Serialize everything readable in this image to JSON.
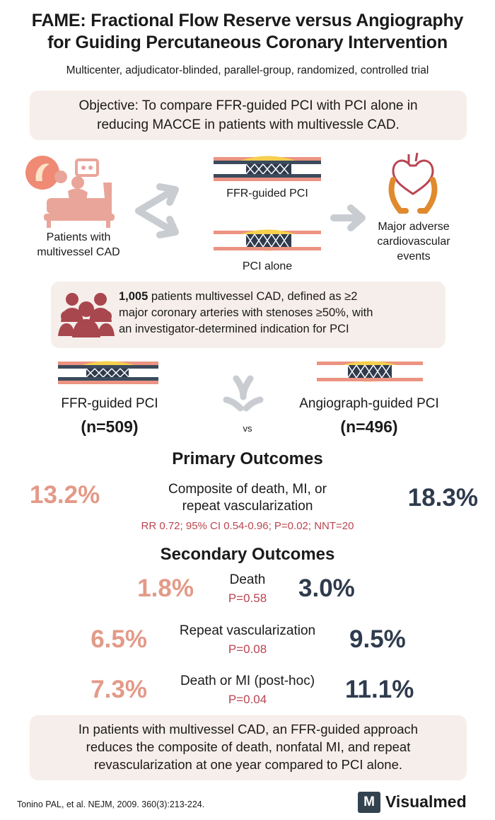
{
  "header": {
    "title_line1": "FAME: Fractional Flow Reserve versus Angiography",
    "title_line2": "for Guiding Percutaneous Coronary Intervention",
    "subtitle": "Multicenter, adjudicator-blinded, parallel-group, randomized, controlled trial"
  },
  "objective": {
    "line1": "Objective: To compare FFR-guided PCI with PCI alone in",
    "line2": "reducing MACCE in patients with multivessle CAD."
  },
  "design": {
    "patients_line1": "Patients with",
    "patients_line2": "multivessel CAD",
    "arm1_label": "FFR-guided PCI",
    "arm2_label": "PCI alone",
    "outcome_line1": "Major adverse",
    "outcome_line2": "cardiovascular",
    "outcome_line3": "events"
  },
  "population": {
    "count": "1,005",
    "line1_rest": " patients multivessel CAD, defined as ≥2",
    "line2": "major coronary arteries with stenoses ≥50%, with",
    "line3": "an investigator-determined indication for PCI"
  },
  "arms": {
    "left_name": "FFR-guided PCI",
    "left_n": "(n=509)",
    "vs": "vs",
    "right_name": "Angiograph-guided PCI",
    "right_n": "(n=496)"
  },
  "primary": {
    "heading": "Primary Outcomes",
    "ffr": "13.2%",
    "label_line1": "Composite of death, MI, or",
    "label_line2": "repeat vascularization",
    "angio": "18.3%",
    "stats": "RR 0.72; 95% CI 0.54-0.96; P=0.02; NNT=20"
  },
  "secondary": {
    "heading": "Secondary Outcomes",
    "rows": [
      {
        "ffr": "1.8%",
        "label": "Death",
        "p": "P=0.58",
        "angio": "3.0%"
      },
      {
        "ffr": "6.5%",
        "label": "Repeat vascularization",
        "p": "P=0.08",
        "angio": "9.5%"
      },
      {
        "ffr": "7.3%",
        "label": "Death or MI (post-hoc)",
        "p": "P=0.04",
        "angio": "11.1%"
      }
    ]
  },
  "conclusion": {
    "line1": "In patients with multivessel CAD, an FFR-guided approach",
    "line2": "reduces the composite of death, nonfatal MI, and repeat",
    "line3": "revascularization at one year compared to PCI alone."
  },
  "footer": {
    "citation": "Tonino PAL, et al. NEJM, 2009. 360(3):213-224.",
    "logo_letter": "M",
    "brand": "Visualmed"
  },
  "colors": {
    "ffr_accent": "#e39a88",
    "angio_accent": "#2f3b4d",
    "stat_red": "#b94551",
    "box_bg": "#f6eeea",
    "people_icon": "#a8474e"
  },
  "icons": [
    "patient-bed-icon",
    "split-arrow-icon",
    "stent-artery-icon",
    "right-arrow-icon",
    "heart-hands-icon",
    "people-group-icon",
    "merge-arrow-icon",
    "visualmed-logo-icon"
  ]
}
